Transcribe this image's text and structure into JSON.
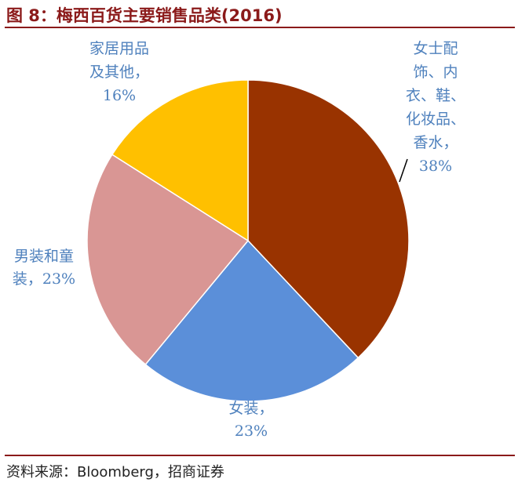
{
  "figure": {
    "title": "图 8：梅西百货主要销售品类(2016)",
    "source": "资料来源：Bloomberg，招商证券"
  },
  "colors": {
    "rule": "#8B1A1A",
    "label": "#4F81BD"
  },
  "chart_data": {
    "type": "pie",
    "title": "",
    "start_angle_deg": 0,
    "direction": "clockwise",
    "slices": [
      {
        "label": "女士配饰、内衣、鞋、化妆品、香水",
        "value": 38,
        "value_label": "38%",
        "color": "#993300",
        "label_lines": [
          "女士配",
          "饰、内",
          "衣、鞋、",
          "化妆品、",
          "香水，",
          "38%"
        ]
      },
      {
        "label": "女装",
        "value": 23,
        "value_label": "23%",
        "color": "#5B8FD9",
        "label_lines": [
          "女装，",
          "23%"
        ]
      },
      {
        "label": "男装和童装",
        "value": 23,
        "value_label": "23%",
        "color": "#D99694",
        "label_lines": [
          "男装和童",
          "装，23%"
        ]
      },
      {
        "label": "家居用品及其他",
        "value": 16,
        "value_label": "16%",
        "color": "#FFC000",
        "label_lines": [
          "家居用品",
          "及其他，",
          "16%"
        ]
      }
    ]
  }
}
